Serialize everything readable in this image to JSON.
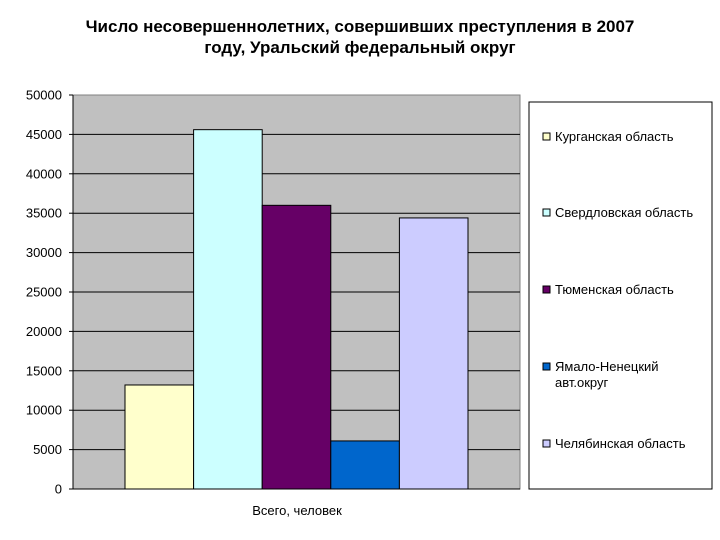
{
  "chart_data": {
    "type": "bar",
    "title_lines": [
      "Число несовершеннолетних, совершивших преступления в 2007",
      "году, Уральский федеральный округ"
    ],
    "categories": [
      "Всего, человек"
    ],
    "series": [
      {
        "name": "Курганская область",
        "values": [
          13200
        ],
        "color": "#ffffcc"
      },
      {
        "name": "Свердловская область",
        "values": [
          45600
        ],
        "color": "#ccffff"
      },
      {
        "name": "Тюменская область",
        "values": [
          36000
        ],
        "color": "#660066"
      },
      {
        "name": "Ямало-Ненецкий автокруг",
        "label_lines": [
          "Ямало-Ненецкий",
          "авт.округ"
        ],
        "values": [
          6100
        ],
        "color": "#0066cc"
      },
      {
        "name": "Челябинская область",
        "values": [
          34400
        ],
        "color": "#ccccff"
      }
    ],
    "ylim": [
      0,
      50000
    ],
    "yticks": [
      "0",
      "5000",
      "10000",
      "15000",
      "20000",
      "25000",
      "30000",
      "35000",
      "40000",
      "45000",
      "50000"
    ],
    "grid": true,
    "plot_background": "#c0c0c0",
    "legend_position": "right"
  }
}
